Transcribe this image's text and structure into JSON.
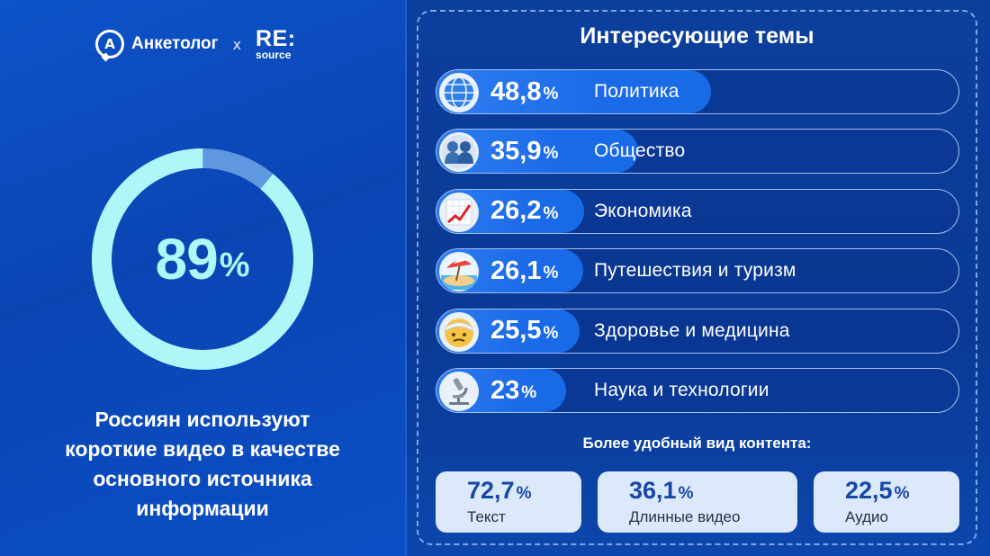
{
  "header": {
    "brand1": "Анкетолог",
    "brand1_icon_letter": "А",
    "separator": "x",
    "brand2_main": "RE:",
    "brand2_sub": "source"
  },
  "left": {
    "big_value": "89",
    "big_unit": "%",
    "caption_lines": [
      "Россиян используют",
      "короткие видео в качестве",
      "основного источника",
      "информации"
    ]
  },
  "right": {
    "title": "Интересующие темы",
    "subtitle": "Более удобный вид контента:"
  },
  "chart_data": [
    {
      "type": "pie",
      "title": "",
      "values": [
        89,
        11
      ],
      "categories": [
        "Россиян используют короткие видео в качестве основного источника информации",
        ""
      ],
      "colors": [
        "#aef6f8",
        "#5f97e0"
      ]
    },
    {
      "type": "bar",
      "title": "Интересующие темы",
      "orientation": "horizontal",
      "categories": [
        "Политика",
        "Общество",
        "Экономика",
        "Путешествия и туризм",
        "Здоровье и медицина",
        "Наука и технологии"
      ],
      "value_labels": [
        "48,8",
        "35,9",
        "26,2",
        "26,1",
        "25,5",
        "23"
      ],
      "values": [
        48.8,
        35.9,
        26.2,
        26.1,
        25.5,
        23
      ],
      "unit": "%",
      "icons": [
        "globe-icon",
        "people-icon",
        "chart-up-icon",
        "beach-icon",
        "bandaged-face-icon",
        "microscope-icon"
      ]
    },
    {
      "type": "table",
      "title": "Более удобный вид контента:",
      "categories": [
        "Текст",
        "Длинные видео",
        "Аудио"
      ],
      "value_labels": [
        "72,7",
        "36,1",
        "22,5"
      ],
      "values": [
        72.7,
        36.1,
        22.5
      ],
      "unit": "%"
    }
  ],
  "colors": {
    "background": "#0a3fa0",
    "accent_cyan": "#aef6f8",
    "bar_fill": "#1c6ae8",
    "card_bg": "#dbe9fb",
    "card_value": "#1747a6"
  }
}
